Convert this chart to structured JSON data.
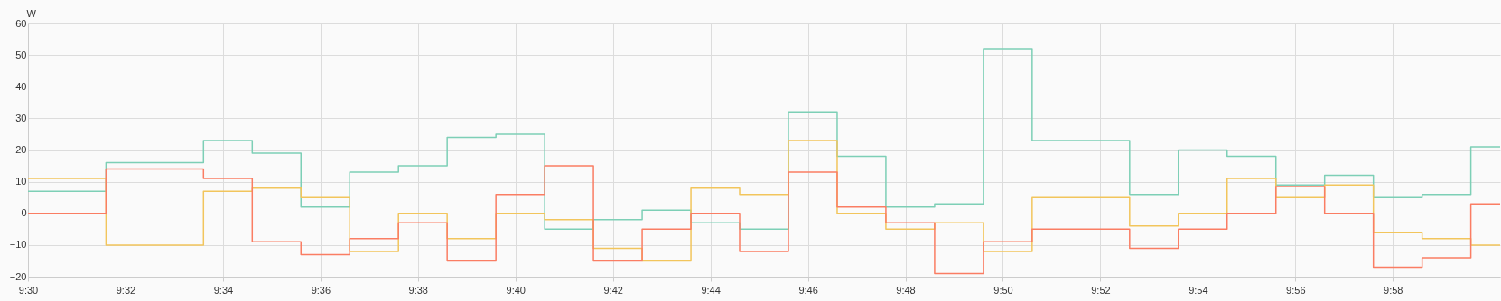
{
  "chart_data": {
    "type": "step",
    "ylabel": "W",
    "x": [
      9.5,
      9.52667,
      9.54333,
      9.56,
      9.57667,
      9.59333,
      9.61,
      9.62667,
      9.64333,
      9.66,
      9.67667,
      9.69333,
      9.71,
      9.72667,
      9.74333,
      9.76,
      9.77667,
      9.79333,
      9.81,
      9.82667,
      9.84333,
      9.86,
      9.87667,
      9.89333,
      9.91,
      9.92667,
      9.94333,
      9.96,
      9.97667,
      9.99333,
      10.00333
    ],
    "series": [
      {
        "color": "#7dcfb6",
        "values": [
          7,
          16,
          16,
          23,
          19,
          2,
          13,
          15,
          24,
          25,
          -5,
          -2,
          1,
          -3,
          -5,
          32,
          18,
          2,
          3,
          52,
          23,
          23,
          6,
          20,
          18,
          9,
          12,
          5,
          6,
          21,
          21
        ]
      },
      {
        "color": "#f2c55c",
        "values": [
          11,
          -10,
          -10,
          7,
          8,
          5,
          -12,
          0,
          -8,
          0,
          -2,
          -11,
          -15,
          8,
          6,
          23,
          0,
          -5,
          -3,
          -12,
          5,
          5,
          -4,
          0,
          11,
          5,
          9,
          -6,
          -8,
          -10,
          -10
        ]
      },
      {
        "color": "#fa7d63",
        "values": [
          0,
          14,
          14,
          11,
          -9,
          -13,
          -8,
          -3,
          -15,
          6,
          15,
          -15,
          -5,
          0,
          -12,
          13,
          2,
          -3,
          -19,
          -9,
          -5,
          -5,
          -11,
          -5,
          0,
          8.5,
          0,
          -17,
          -14,
          3,
          3
        ]
      }
    ],
    "xlim": [
      9.5,
      10.00333
    ],
    "xticks": [
      {
        "value": 9.5,
        "label": "9:30"
      },
      {
        "value": 9.53333,
        "label": "9:32"
      },
      {
        "value": 9.56667,
        "label": "9:34"
      },
      {
        "value": 9.6,
        "label": "9:36"
      },
      {
        "value": 9.63333,
        "label": "9:38"
      },
      {
        "value": 9.66667,
        "label": "9:40"
      },
      {
        "value": 9.7,
        "label": "9:42"
      },
      {
        "value": 9.73333,
        "label": "9:44"
      },
      {
        "value": 9.76667,
        "label": "9:46"
      },
      {
        "value": 9.8,
        "label": "9:48"
      },
      {
        "value": 9.83333,
        "label": "9:50"
      },
      {
        "value": 9.86667,
        "label": "9:52"
      },
      {
        "value": 9.9,
        "label": "9:54"
      },
      {
        "value": 9.93333,
        "label": "9:56"
      },
      {
        "value": 9.96667,
        "label": "9:58"
      }
    ],
    "ylim": [
      -20,
      60
    ],
    "yticks": [
      -20,
      -10,
      0,
      10,
      20,
      30,
      40,
      50,
      60
    ],
    "grid": true,
    "legend": false
  }
}
